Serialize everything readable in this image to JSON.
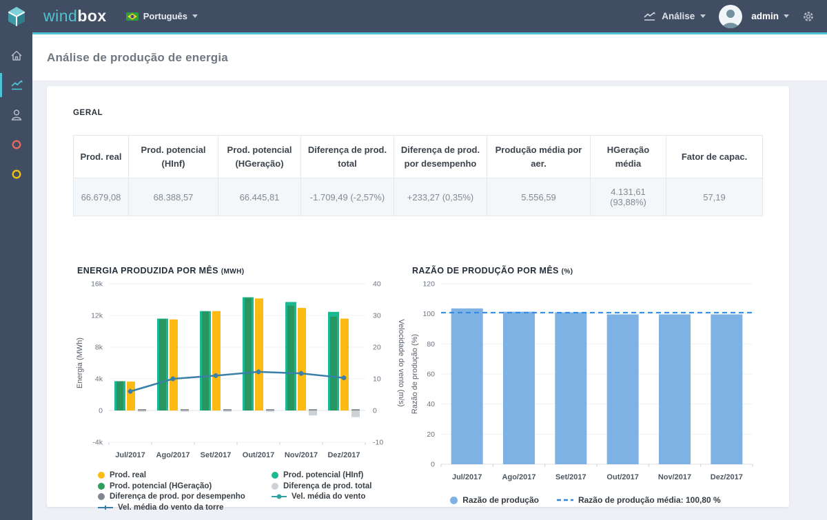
{
  "topbar": {
    "brand": {
      "wind": "wind",
      "box": "box"
    },
    "language": {
      "label": "Português"
    },
    "nav": {
      "analysis_label": "Análise"
    },
    "user": {
      "name": "admin"
    }
  },
  "page": {
    "title": "Análise de produção de energia"
  },
  "general": {
    "section_title": "GERAL"
  },
  "summary_table": {
    "columns": [
      "Prod. real",
      "Prod. potencial (HInf)",
      "Prod. potencial (HGeração)",
      "Diferença de prod. total",
      "Diferença de prod. por desempenho",
      "Produção média por aer.",
      "HGeração média",
      "Fator de capac."
    ],
    "values": [
      "66.679,08",
      "68.388,57",
      "66.445,81",
      "-1.709,49 (-2,57%)",
      "+233,27 (0,35%)",
      "5.556,59",
      "4.131,61 (93,88%)",
      "57,19"
    ]
  },
  "chart_data": [
    {
      "type": "bar+line",
      "title": "ENERGIA PRODUZIDA POR MÊS",
      "title_unit": "(MWH)",
      "categories": [
        "Jul/2017",
        "Ago/2017",
        "Set/2017",
        "Out/2017",
        "Nov/2017",
        "Dez/2017"
      ],
      "series": [
        {
          "name": "Prod. potencial (HInf)",
          "type": "bar",
          "color": "#1cb893",
          "values": [
            3700,
            11600,
            12550,
            14300,
            13700,
            12450
          ]
        },
        {
          "name": "Prod. potencial (HGeração)",
          "type": "bar",
          "color": "#279661",
          "values": [
            3680,
            11520,
            12500,
            14220,
            13250,
            11850
          ]
        },
        {
          "name": "Prod. real",
          "type": "bar",
          "color": "#fdba12",
          "values": [
            3650,
            11500,
            12550,
            14150,
            12950,
            11600
          ]
        },
        {
          "name": "Diferença de prod. total",
          "type": "bar",
          "color": "#cdd2d6",
          "values": [
            -50,
            -100,
            -30,
            -150,
            -620,
            -840
          ]
        },
        {
          "name": "Diferença de prod. por desempenho",
          "type": "bar",
          "color": "#80878f",
          "values": [
            40,
            40,
            40,
            40,
            35,
            38
          ]
        },
        {
          "name": "Vel. média do vento",
          "type": "line",
          "marker": "dot",
          "axis": "right",
          "color": "#3a80a8",
          "legend_color": "#2fa3a0",
          "values": [
            6.0,
            10.0,
            11.0,
            12.2,
            11.7,
            10.3
          ]
        },
        {
          "name": "Vel. média do vento da torre",
          "type": "line",
          "marker": "plus",
          "axis": "right",
          "color": "#3a7ca8",
          "legend_color": "#3a7ca8",
          "values": [
            6.1,
            10.0,
            11.0,
            12.2,
            11.7,
            10.3
          ]
        }
      ],
      "legend_order": [
        2,
        0,
        1,
        3,
        4,
        5,
        6
      ],
      "ylabel_left": "Energia (MWh)",
      "ylabel_right": "Velocidade do vento (m/s)",
      "ylim_left": [
        -4000,
        16000
      ],
      "ylim_right": [
        -10,
        40
      ],
      "yticks_left": [
        {
          "label": "16k",
          "value": 16000
        },
        {
          "label": "12k",
          "value": 12000
        },
        {
          "label": "8k",
          "value": 8000
        },
        {
          "label": "4k",
          "value": 4000
        },
        {
          "label": "0",
          "value": 0
        },
        {
          "label": "-4k",
          "value": -4000
        }
      ],
      "yticks_right": [
        {
          "label": "40",
          "value": 40
        },
        {
          "label": "30",
          "value": 30
        },
        {
          "label": "20",
          "value": 20
        },
        {
          "label": "10",
          "value": 10
        },
        {
          "label": "0",
          "value": 0
        },
        {
          "label": "-10",
          "value": -10
        }
      ]
    },
    {
      "type": "bar",
      "title": "RAZÃO DE PRODUÇÃO POR MÊS",
      "title_unit": "(%)",
      "categories": [
        "Jul/2017",
        "Ago/2017",
        "Set/2017",
        "Out/2017",
        "Nov/2017",
        "Dez/2017"
      ],
      "values": [
        103.6,
        101.4,
        101.0,
        99.6,
        99.6,
        99.6
      ],
      "bar_color": "#7eb2e5",
      "series_label": "Razão de produção",
      "average_value": 100.8,
      "average_label": "Razão de produção média: 100,80 %",
      "avg_line_color": "#2e86de",
      "ylabel": "Razão de produção (%)",
      "ylim": [
        0,
        120
      ],
      "yticks": [
        0,
        20,
        40,
        60,
        80,
        100,
        120
      ]
    }
  ],
  "colors": {
    "accent_teal": "#4cc3d2",
    "topbar_bg": "#414d62",
    "page_bg": "#edf0f4",
    "card_bg": "#ffffff"
  }
}
